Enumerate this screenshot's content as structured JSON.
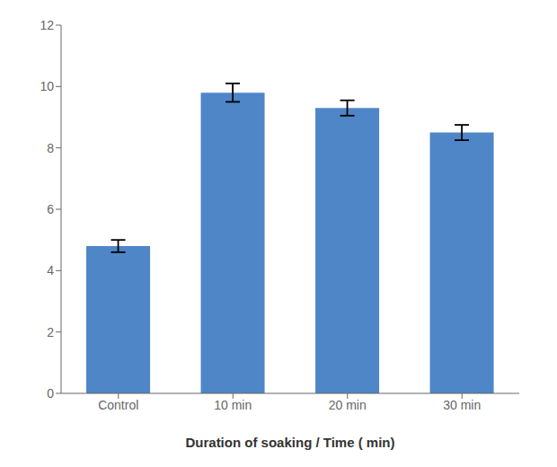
{
  "chart_data": {
    "type": "bar",
    "categories": [
      "Control",
      "10 min",
      "20 min",
      "30 min"
    ],
    "values": [
      4.8,
      9.8,
      9.3,
      8.5
    ],
    "errors": [
      0.2,
      0.3,
      0.25,
      0.25
    ],
    "color": "#4E86C8",
    "xlabel": "Duration of soaking / Time ( min)",
    "ylim": [
      0,
      12
    ],
    "yticks": [
      0,
      2,
      4,
      6,
      8,
      10,
      12
    ]
  }
}
